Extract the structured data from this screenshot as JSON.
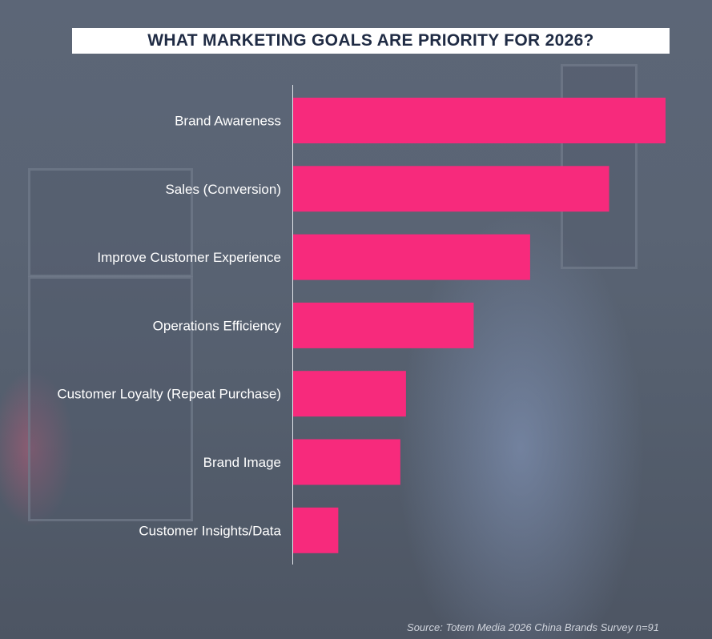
{
  "chart_data": {
    "type": "bar",
    "orientation": "horizontal",
    "title": "WHAT MARKETING GOALS ARE PRIORITY FOR 2026?",
    "categories": [
      "Brand Awareness",
      "Sales (Conversion)",
      "Improve Customer Experience",
      "Operations Efficiency",
      "Customer Loyalty (Repeat Purchase)",
      "Brand Image",
      "Customer Insights/Data"
    ],
    "values": [
      6.6,
      5.6,
      4.2,
      3.2,
      2.0,
      1.9,
      0.8
    ],
    "xlim": [
      0,
      6.6
    ],
    "xlabel": "",
    "ylabel": "",
    "grid": false,
    "legend": "none",
    "bar_color": "#f72a7c",
    "source": "Source: Totem Media 2026 China Brands Survey n=91"
  }
}
